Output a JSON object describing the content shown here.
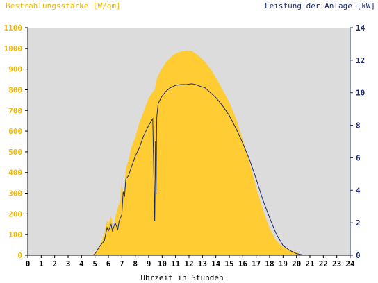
{
  "chart_data": {
    "type": "area",
    "left_axis_title": "Bestrahlungsstärke [W/qm]",
    "right_axis_title": "Leistung der Anlage [kW]",
    "xlabel": "Uhrzeit in Stunden",
    "x_ticks": [
      "0",
      "1",
      "2",
      "3",
      "4",
      "5",
      "6",
      "7",
      "8",
      "9",
      "10",
      "11",
      "12",
      "13",
      "14",
      "15",
      "16",
      "17",
      "18",
      "19",
      "20",
      "21",
      "22",
      "23",
      "24"
    ],
    "xlim": [
      0,
      24
    ],
    "ylim_left": [
      0,
      1100
    ],
    "ylim_right": [
      0,
      14
    ],
    "y_ticks_left": [
      "0",
      "100",
      "200",
      "300",
      "400",
      "500",
      "600",
      "700",
      "800",
      "900",
      "1000",
      "1100"
    ],
    "y_ticks_right": [
      "0",
      "2",
      "4",
      "6",
      "8",
      "10",
      "12",
      "14"
    ],
    "grid": false,
    "colors": {
      "irradiance": "#ffcc33",
      "power": "#1a2a6c",
      "plot_background": "#dcdcdc",
      "left_axis_text": "#f5b800",
      "right_axis_text": "#1a2a6c"
    },
    "series": [
      {
        "axis": "left",
        "style": "area",
        "x": [
          0,
          4.6,
          4.9,
          5.1,
          5.3,
          5.5,
          5.7,
          5.9,
          6.0,
          6.2,
          6.4,
          6.5,
          6.7,
          6.9,
          7.0,
          7.1,
          7.2,
          7.3,
          7.5,
          7.7,
          8.0,
          8.3,
          8.6,
          9.0,
          9.3,
          9.45,
          9.55,
          9.7,
          10.0,
          10.3,
          10.6,
          11.0,
          11.4,
          11.8,
          12.2,
          12.5,
          12.8,
          13.2,
          13.6,
          14.0,
          14.5,
          15.0,
          15.5,
          16.0,
          16.5,
          17.0,
          17.5,
          18.0,
          18.5,
          19.0,
          19.5,
          20.0,
          20.3,
          20.6,
          24
        ],
        "values": [
          0,
          0,
          5,
          20,
          40,
          70,
          110,
          170,
          150,
          190,
          120,
          180,
          230,
          270,
          370,
          260,
          330,
          420,
          460,
          520,
          570,
          640,
          690,
          760,
          790,
          800,
          840,
          870,
          905,
          935,
          955,
          975,
          985,
          990,
          988,
          975,
          960,
          935,
          900,
          860,
          800,
          740,
          660,
          560,
          450,
          330,
          220,
          130,
          70,
          40,
          25,
          15,
          5,
          0,
          0
        ]
      },
      {
        "axis": "right",
        "style": "line",
        "x": [
          0,
          4.9,
          5.1,
          5.3,
          5.5,
          5.7,
          5.9,
          6.0,
          6.2,
          6.3,
          6.5,
          6.7,
          6.8,
          7.0,
          7.1,
          7.2,
          7.3,
          7.5,
          7.7,
          8.0,
          8.3,
          8.6,
          9.0,
          9.3,
          9.45,
          9.5,
          9.55,
          9.6,
          9.7,
          9.8,
          10.0,
          10.3,
          10.6,
          11.0,
          11.4,
          11.8,
          12.2,
          12.5,
          12.8,
          13.2,
          13.6,
          14.0,
          14.5,
          15.0,
          15.5,
          16.0,
          16.5,
          17.0,
          17.5,
          18.0,
          18.5,
          19.0,
          19.5,
          20.0,
          20.3,
          20.6,
          24
        ],
        "values": [
          0,
          0,
          0.2,
          0.5,
          0.7,
          0.9,
          1.7,
          1.5,
          1.9,
          1.5,
          2.0,
          1.6,
          2.1,
          2.5,
          3.9,
          3.6,
          4.7,
          4.9,
          5.4,
          6.1,
          6.6,
          7.3,
          8.0,
          8.4,
          2.1,
          7.0,
          3.8,
          8.5,
          9.3,
          9.5,
          9.8,
          10.1,
          10.3,
          10.45,
          10.5,
          10.5,
          10.55,
          10.5,
          10.4,
          10.3,
          10.0,
          9.7,
          9.2,
          8.6,
          7.8,
          6.9,
          5.9,
          4.7,
          3.4,
          2.3,
          1.3,
          0.6,
          0.3,
          0.1,
          0.05,
          0,
          0
        ]
      }
    ]
  }
}
